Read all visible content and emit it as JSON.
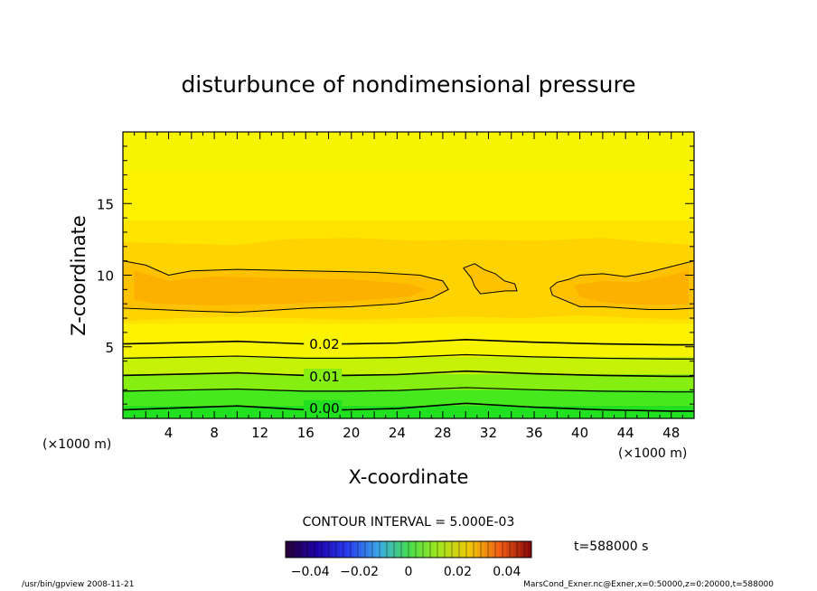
{
  "chart_data": {
    "type": "heatmap",
    "title": "disturbunce of nondimensional pressure",
    "xlabel": "X-coordinate",
    "ylabel": "Z-coordinate",
    "x_unit": "(×1000 m)",
    "z_unit": "(×1000 m)",
    "xlim": [
      0,
      50
    ],
    "ylim": [
      0,
      20
    ],
    "x_ticks": [
      4,
      8,
      12,
      16,
      20,
      24,
      28,
      32,
      36,
      40,
      44,
      48
    ],
    "y_ticks": [
      5,
      10,
      15
    ],
    "contour_interval_text": "CONTOUR INTERVAL = 5.000E-03",
    "contour_levels": [
      0.0,
      0.005,
      0.01,
      0.015,
      0.02,
      0.025,
      0.03
    ],
    "contour_labels": [
      {
        "text": "0.02",
        "x": 17.5,
        "z": 5.2
      },
      {
        "text": "0.01",
        "x": 17.5,
        "z": 2.9
      },
      {
        "text": "0.00",
        "x": 17.5,
        "z": 0.7
      }
    ],
    "colorbar": {
      "tick_labels": [
        "−0.04",
        "−0.02",
        "0",
        "0.02",
        "0.04"
      ],
      "tick_values": [
        -0.04,
        -0.02,
        0,
        0.02,
        0.04
      ],
      "range": [
        -0.05,
        0.05
      ]
    },
    "time_label": "t=588000 s",
    "colors": {
      "c000": "#20e020",
      "c005": "#46e81e",
      "c010": "#86ee10",
      "c015": "#c6f208",
      "c020": "#f6f400",
      "c025": "#fff200",
      "c030": "#ffe400",
      "c035": "#fed300",
      "c040": "#fdc100",
      "c045": "#fcb000"
    }
  },
  "footer": {
    "left": "/usr/bin/gpview   2008-11-21",
    "right": "MarsCond_Exner.nc@Exner,x=0:50000,z=0:20000,t=588000"
  }
}
